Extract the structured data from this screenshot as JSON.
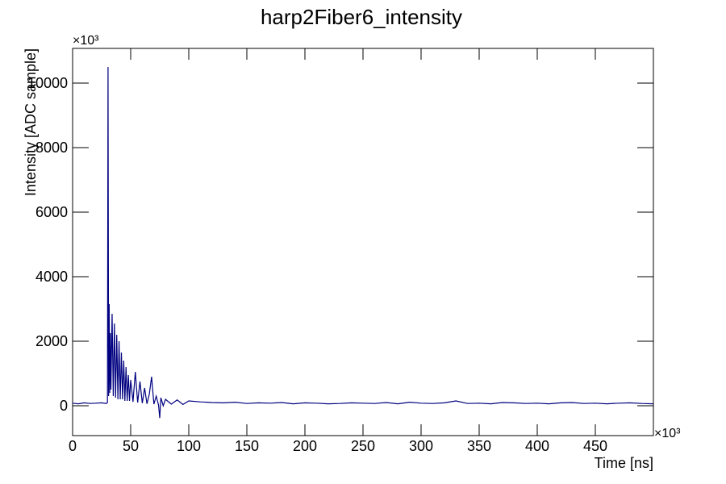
{
  "chart_data": {
    "type": "line",
    "title": "harp2Fiber6_intensity",
    "x_label": "Time [ns]",
    "y_label": "Intensity [ADC sample]",
    "x_multiplier": "×10³",
    "y_multiplier": "×10³",
    "xlim": [
      0,
      500
    ],
    "ylim": [
      -925,
      11075
    ],
    "xticks": [
      0,
      50,
      100,
      150,
      200,
      250,
      300,
      350,
      400,
      450
    ],
    "yticks": [
      0,
      2000,
      4000,
      6000,
      8000,
      10000
    ],
    "x": [
      0,
      5,
      10,
      15,
      20,
      25,
      29,
      30,
      30.5,
      31,
      31.5,
      32,
      32.5,
      33,
      34,
      35,
      36,
      37,
      38,
      39,
      40,
      41,
      42,
      43,
      44,
      45,
      46,
      47,
      48,
      49,
      50,
      52,
      54,
      56,
      58,
      60,
      62,
      64,
      66,
      68,
      70,
      72,
      74,
      75,
      76,
      78,
      80,
      85,
      90,
      95,
      100,
      110,
      120,
      130,
      140,
      150,
      160,
      170,
      180,
      190,
      200,
      210,
      220,
      230,
      240,
      250,
      260,
      270,
      280,
      290,
      300,
      310,
      320,
      330,
      340,
      350,
      360,
      370,
      380,
      390,
      400,
      410,
      420,
      430,
      440,
      450,
      460,
      470,
      480,
      490,
      500
    ],
    "series": [
      {
        "color": "#000080",
        "values": [
          80,
          60,
          90,
          70,
          80,
          90,
          70,
          100,
          10500,
          300,
          3150,
          400,
          2250,
          500,
          2850,
          300,
          2550,
          250,
          2200,
          200,
          2000,
          200,
          1650,
          200,
          1400,
          150,
          1200,
          150,
          950,
          150,
          800,
          120,
          1050,
          100,
          750,
          80,
          550,
          60,
          350,
          900,
          50,
          300,
          20,
          -380,
          250,
          0,
          200,
          50,
          180,
          40,
          150,
          120,
          100,
          90,
          110,
          70,
          90,
          80,
          100,
          60,
          90,
          80,
          60,
          70,
          90,
          80,
          70,
          100,
          60,
          110,
          80,
          70,
          90,
          150,
          70,
          80,
          60,
          100,
          90,
          70,
          80,
          60,
          90,
          100,
          70,
          80,
          60,
          80,
          90,
          70,
          60
        ]
      }
    ]
  }
}
